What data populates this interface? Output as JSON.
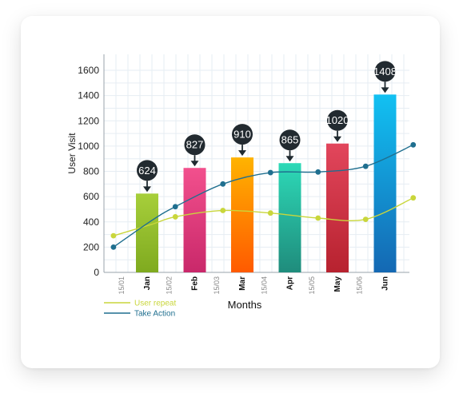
{
  "chart_data": {
    "type": "bar",
    "title": "",
    "xlabel": "Months",
    "ylabel": "User Visit",
    "ylim": [
      0,
      1600
    ],
    "yticks": [
      "0",
      "200",
      "400",
      "600",
      "800",
      "1000",
      "1200",
      "1400",
      "1600"
    ],
    "categories": [
      "Jan",
      "Feb",
      "Mar",
      "Apr",
      "May",
      "Jun"
    ],
    "values": [
      624,
      827,
      910,
      865,
      1020,
      1408
    ],
    "value_labels": [
      "624",
      "827",
      "910",
      "865",
      "1020",
      "1408"
    ],
    "bar_colors": [
      [
        "#a7cf3b",
        "#7faa1f"
      ],
      [
        "#f2508d",
        "#c9286a"
      ],
      [
        "#ffb300",
        "#ff5a00"
      ],
      [
        "#2dd9b7",
        "#1f8c7c"
      ],
      [
        "#e2465c",
        "#b7222f"
      ],
      [
        "#12c1f2",
        "#1468b3"
      ]
    ],
    "date_labels": [
      "15/01",
      "15/02",
      "15/03",
      "15/04",
      "15/05",
      "15/06"
    ],
    "grid": true,
    "series": [
      {
        "name": "User repeat",
        "color": "#c9d63b",
        "type": "line",
        "points": [
          [
            0.2,
            290
          ],
          [
            1.0,
            380
          ],
          [
            1.5,
            440
          ],
          [
            2.5,
            490
          ],
          [
            3.5,
            470
          ],
          [
            4.5,
            430
          ],
          [
            5.5,
            420
          ],
          [
            6.5,
            590
          ]
        ],
        "markers": [
          [
            0.2,
            290
          ],
          [
            1.5,
            440
          ],
          [
            2.5,
            490
          ],
          [
            3.5,
            470
          ],
          [
            4.5,
            430
          ],
          [
            5.5,
            420
          ],
          [
            6.5,
            590
          ]
        ]
      },
      {
        "name": "Take Action",
        "color": "#1f6f8f",
        "type": "line",
        "points": [
          [
            0.2,
            200
          ],
          [
            1.0,
            410
          ],
          [
            1.5,
            520
          ],
          [
            2.5,
            700
          ],
          [
            3.5,
            790
          ],
          [
            4.5,
            795
          ],
          [
            5.5,
            840
          ],
          [
            6.5,
            1010
          ]
        ],
        "markers": [
          [
            0.2,
            200
          ],
          [
            1.5,
            520
          ],
          [
            2.5,
            700
          ],
          [
            3.5,
            790
          ],
          [
            4.5,
            795
          ],
          [
            5.5,
            840
          ],
          [
            6.5,
            1010
          ]
        ]
      }
    ],
    "legend_position": "bottom-left"
  }
}
